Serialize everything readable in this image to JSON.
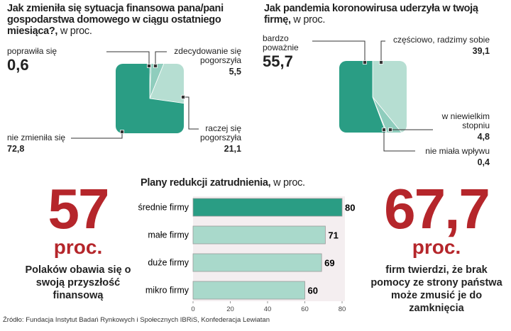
{
  "chart_data": [
    {
      "type": "pie",
      "title": "Jak zmieniła się sytuacja finansowa pana/pani gospodarstwa domowego w ciągu ostatniego miesiąca?,",
      "subtitle": "w proc.",
      "categories": [
        "poprawiła się",
        "zdecydowanie się pogorszyła",
        "raczej się pogorszyła",
        "nie zmieniła się"
      ],
      "values": [
        0.6,
        5.5,
        21.1,
        72.8
      ],
      "value_labels": [
        "0,6",
        "5,5",
        "21,1",
        "72,8"
      ],
      "colors": [
        "#2a9d84",
        "#8fcdbd",
        "#b6ded2",
        "#2a9d84"
      ]
    },
    {
      "type": "pie",
      "title": "Jak pandemia koronowirusa uderzyła w twoją firmę,",
      "subtitle": "w proc.",
      "categories": [
        "częściowo, radzimy sobie",
        "w niewielkim stopniu",
        "nie miała wpływu",
        "bardzo poważnie"
      ],
      "values": [
        39.1,
        4.8,
        0.4,
        55.7
      ],
      "value_labels": [
        "39,1",
        "4,8",
        "0,4",
        "55,7"
      ],
      "colors": [
        "#b6ded2",
        "#8fcdbd",
        "#6fbfaa",
        "#2a9d84"
      ]
    },
    {
      "type": "hbar",
      "title": "Plany redukcji zatrudnienia,",
      "subtitle": "w proc.",
      "categories": [
        "średnie firmy",
        "małe firmy",
        "duże firmy",
        "mikro firmy"
      ],
      "values": [
        80,
        71,
        69,
        60
      ],
      "colors": [
        "#2a9d84",
        "#a9d9cb",
        "#a9d9cb",
        "#a9d9cb"
      ],
      "xlim": [
        0,
        80
      ],
      "xticks": [
        0,
        20,
        40,
        60,
        80
      ]
    }
  ],
  "stats": [
    {
      "number": "57",
      "unit": "proc.",
      "text": "Polaków obawia się o swoją przyszłość finansową"
    },
    {
      "number": "67,7",
      "unit": "proc.",
      "text": "firm twierdzi, że brak pomocy ze strony państwa może zmusić je do zamknięcia"
    }
  ],
  "source": "Źródło: Fundacja Instytut Badań Rynkowych i Społecznych IBRiS, Konfederacja Lewiatan"
}
